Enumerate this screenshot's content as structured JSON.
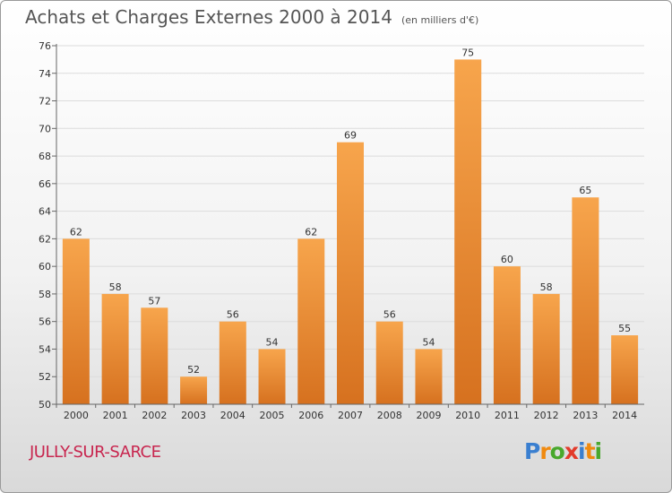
{
  "title": "Achats et Charges Externes 2000 à 2014",
  "subtitle": "(en milliers d'€)",
  "commune": "JULLY-SUR-SARCE",
  "logo": {
    "p": "P",
    "r": "r",
    "o": "o",
    "x": "x",
    "i": "i",
    "t": "t",
    "i2": "i"
  },
  "colors": {
    "bar_light": "#f7a54c",
    "bar_dark": "#d6711f",
    "commune": "#c8264f"
  },
  "chart_data": {
    "type": "bar",
    "title": "Achats et Charges Externes 2000 à 2014",
    "subtitle": "(en milliers d'€)",
    "xlabel": "",
    "ylabel": "",
    "categories": [
      "2000",
      "2001",
      "2002",
      "2003",
      "2004",
      "2005",
      "2006",
      "2007",
      "2008",
      "2009",
      "2010",
      "2011",
      "2012",
      "2013",
      "2014"
    ],
    "values": [
      62,
      58,
      57,
      52,
      56,
      54,
      62,
      69,
      56,
      54,
      75,
      60,
      58,
      65,
      55
    ],
    "ylim": [
      50,
      76
    ],
    "yticks": [
      50,
      52,
      54,
      56,
      58,
      60,
      62,
      64,
      66,
      68,
      70,
      72,
      74,
      76
    ],
    "grid": true,
    "legend": "none"
  }
}
